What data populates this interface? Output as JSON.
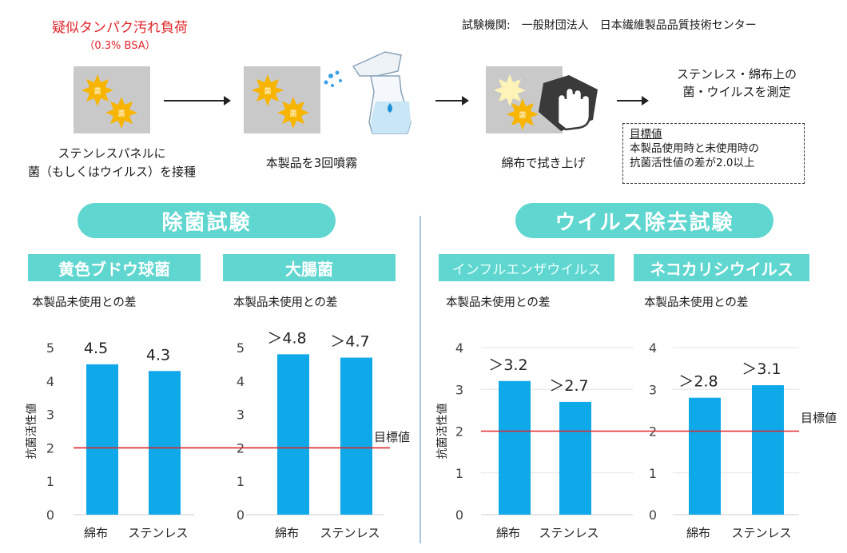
{
  "header": {
    "load_title": "疑似タンパク汚れ負荷",
    "load_sub": "（0.3% BSA）",
    "institution": "試験機関:　一般財団法人　日本繊維製品品質技術センター"
  },
  "steps": {
    "inoculate": [
      "ステンレスパネルに",
      "菌（もしくはウイルス）を接種"
    ],
    "spray": "本製品を3回噴霧",
    "wipe": "綿布で拭き上げ",
    "measure": [
      "ステンレス・綿布上の",
      "菌・ウイルスを測定"
    ],
    "germ_label": "菌"
  },
  "goal": {
    "title": "目標値",
    "lines": [
      "本製品使用時と未使用時の",
      "抗菌活性値の差が2.0以上"
    ]
  },
  "sections": {
    "antibacterial": "除菌試験",
    "antiviral": "ウイルス除去試験"
  },
  "colors": {
    "bar": "#0fa8e8",
    "target": "#e0262b",
    "accent": "#5fd6cf"
  },
  "chart_data": [
    {
      "type": "bar",
      "title": "黄色ブドウ球菌",
      "subtitle": "本製品未使用との差",
      "ylabel": "抗菌活性値",
      "categories": [
        "綿布",
        "ステンレス"
      ],
      "values": [
        4.5,
        4.3
      ],
      "labels": [
        "4.5",
        "4.3"
      ],
      "ylim": [
        0,
        5
      ],
      "yticks": [
        0,
        1,
        2,
        3,
        4,
        5
      ],
      "target": 2,
      "target_label": "",
      "grid": false
    },
    {
      "type": "bar",
      "title": "大腸菌",
      "subtitle": "本製品未使用との差",
      "ylabel": "",
      "categories": [
        "綿布",
        "ステンレス"
      ],
      "values": [
        4.8,
        4.7
      ],
      "labels": [
        "＞4.8",
        "＞4.7"
      ],
      "ylim": [
        0,
        5
      ],
      "yticks": [
        0,
        1,
        2,
        3,
        4,
        5
      ],
      "target": 2,
      "target_label": "目標値",
      "grid": false
    },
    {
      "type": "bar",
      "title": "インフルエンザウイルス",
      "subtitle": "本製品未使用との差",
      "ylabel": "抗菌活性値",
      "categories": [
        "綿布",
        "ステンレス"
      ],
      "values": [
        3.2,
        2.7
      ],
      "labels": [
        "＞3.2",
        "＞2.7"
      ],
      "ylim": [
        0,
        4
      ],
      "yticks": [
        0,
        1,
        2,
        3,
        4
      ],
      "target": 2,
      "target_label": "",
      "grid": true
    },
    {
      "type": "bar",
      "title": "ネコカリシウイルス",
      "subtitle": "本製品未使用との差",
      "ylabel": "",
      "categories": [
        "綿布",
        "ステンレス"
      ],
      "values": [
        2.8,
        3.1
      ],
      "labels": [
        "＞2.8",
        "＞3.1"
      ],
      "ylim": [
        0,
        4
      ],
      "yticks": [
        0,
        1,
        2,
        3,
        4
      ],
      "target": 2,
      "target_label": "目標値",
      "grid": true
    }
  ]
}
